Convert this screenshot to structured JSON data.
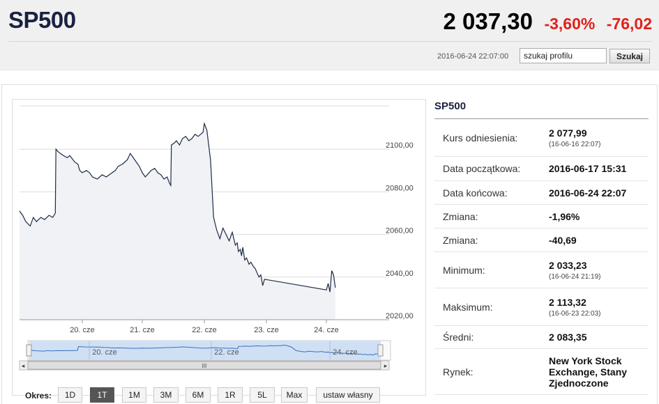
{
  "header": {
    "ticker": "SP500",
    "price": "2 037,30",
    "change_percent": "-3,60%",
    "change_value": "-76,02",
    "timestamp": "2016-06-24 22:07:00",
    "search": {
      "value": "szukaj profilu",
      "button_label": "Szukaj"
    }
  },
  "colors": {
    "negative": "#e0201a",
    "line": "#1c2a46",
    "navigator_fill": "#cfe0f5",
    "navigator_line": "#3a70c0"
  },
  "chart_data": {
    "type": "line",
    "title": "",
    "xlabel": "",
    "ylabel": "",
    "grid": true,
    "x_ticks": [
      "20. cze",
      "21. cze",
      "22. cze",
      "23. cze",
      "24. cze"
    ],
    "y_ticks": [
      "2100,00",
      "2080,00",
      "2060,00",
      "2040,00",
      "2020,00"
    ],
    "ylim": [
      2020,
      2120
    ],
    "series": [
      {
        "x": [
          0.0,
          0.05,
          0.1,
          0.17,
          0.22,
          0.27,
          0.34,
          0.4,
          0.47,
          0.53,
          0.57,
          0.58,
          0.61,
          0.65,
          0.7,
          0.76,
          0.8,
          0.88,
          0.93,
          0.96,
          1.0,
          1.07,
          1.12,
          1.17,
          1.25,
          1.33,
          1.4,
          1.45,
          1.55,
          1.6,
          1.67,
          1.75,
          1.8,
          1.85,
          1.9,
          1.95,
          2.0,
          2.05,
          2.08,
          2.14,
          2.2,
          2.25,
          2.3,
          2.35,
          2.4,
          2.44,
          2.46,
          2.47,
          2.52,
          2.55,
          2.6,
          2.65,
          2.7,
          2.75,
          2.8,
          2.85,
          2.9,
          2.94,
          2.98,
          3.0,
          3.04,
          3.1,
          3.15,
          3.2,
          3.25,
          3.3,
          3.35,
          3.4,
          3.45,
          3.5,
          3.53,
          3.55,
          3.58,
          3.6,
          3.62,
          3.65,
          3.68,
          3.72,
          3.75,
          3.79,
          3.82,
          3.85,
          3.88,
          3.91,
          3.94,
          3.97,
          4.0,
          4.03,
          4.06,
          4.09,
          4.12,
          4.15
        ],
        "values": [
          2071,
          2069,
          2066,
          2064,
          2068,
          2066,
          2068,
          2067,
          2069,
          2068,
          2070,
          2100,
          2099,
          2098,
          2097,
          2096,
          2097,
          2094,
          2093,
          2090,
          2089,
          2090,
          2089,
          2087,
          2086,
          2088,
          2087,
          2088,
          2090,
          2092,
          2093,
          2095,
          2098,
          2096,
          2094,
          2092,
          2089,
          2087,
          2088,
          2090,
          2091,
          2089,
          2088,
          2086,
          2087,
          2084,
          2083,
          2102,
          2103,
          2104,
          2102,
          2105,
          2106,
          2104,
          2105,
          2107,
          2106,
          2107,
          2108,
          2112,
          2109,
          2095,
          2068,
          2062,
          2058,
          2063,
          2060,
          2057,
          2061,
          2055,
          2056,
          2052,
          2053,
          2050,
          2054,
          2048,
          2049,
          2046,
          2047,
          2045,
          2044,
          2042,
          2040,
          2041,
          2036,
          2039,
          2034,
          2037,
          2033,
          2043,
          2041,
          2035
        ]
      }
    ]
  },
  "navigator": {
    "x_ticks": [
      "20. cze",
      "22. cze",
      "24. cze"
    ],
    "scroll_grip": "III",
    "left_arrow": "◂",
    "right_arrow": "▸"
  },
  "period": {
    "label": "Okres:",
    "buttons": [
      "1D",
      "1T",
      "1M",
      "3M",
      "6M",
      "1R",
      "5L",
      "Max",
      "ustaw własny"
    ],
    "active": "1T"
  },
  "stats": {
    "title": "SP500",
    "rows": [
      {
        "label": "Kurs odniesienia:",
        "value": "2 077,99",
        "sub": "(16-06-16 22:07)"
      },
      {
        "label": "Data początkowa:",
        "value": "2016-06-17 15:31",
        "sub": ""
      },
      {
        "label": "Data końcowa:",
        "value": "2016-06-24 22:07",
        "sub": ""
      },
      {
        "label": "Zmiana:",
        "value": "-1,96%",
        "sub": ""
      },
      {
        "label": "Zmiana:",
        "value": "-40,69",
        "sub": ""
      },
      {
        "label": "Minimum:",
        "value": "2 033,23",
        "sub": "(16-06-24 21:19)"
      },
      {
        "label": "Maksimum:",
        "value": "2 113,32",
        "sub": "(16-06-23 22:03)"
      },
      {
        "label": "Średni:",
        "value": "2 083,35",
        "sub": ""
      },
      {
        "label": "Rynek:",
        "value": "New York Stock Exchange, Stany Zjednoczone",
        "sub": ""
      }
    ]
  }
}
